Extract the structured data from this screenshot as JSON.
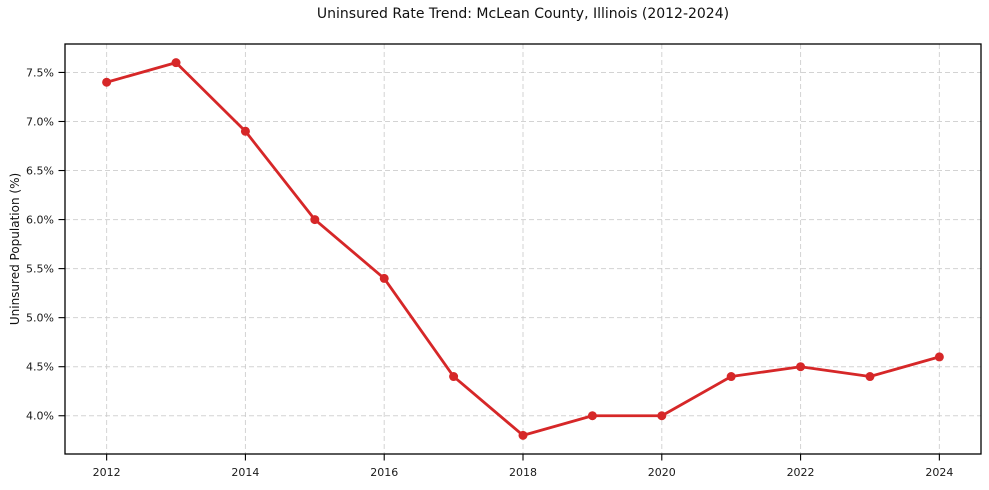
{
  "chart_data": {
    "type": "line",
    "title": "Uninsured Rate Trend: McLean County, Illinois (2012-2024)",
    "xlabel": "",
    "ylabel": "Uninsured Population (%)",
    "x": [
      2012,
      2013,
      2014,
      2015,
      2016,
      2017,
      2018,
      2019,
      2020,
      2021,
      2022,
      2023,
      2024
    ],
    "values": [
      7.4,
      7.6,
      6.9,
      6.0,
      5.4,
      4.4,
      3.8,
      4.0,
      4.0,
      4.4,
      4.5,
      4.4,
      4.6
    ],
    "xlim": [
      2011.4,
      2024.6
    ],
    "ylim": [
      3.61,
      7.79
    ],
    "xticks": [
      2012,
      2014,
      2016,
      2018,
      2020,
      2022,
      2024
    ],
    "xtick_labels": [
      "2012",
      "2014",
      "2016",
      "2018",
      "2020",
      "2022",
      "2024"
    ],
    "yticks": [
      4.0,
      4.5,
      5.0,
      5.5,
      6.0,
      6.5,
      7.0,
      7.5
    ],
    "ytick_labels": [
      "4.0%",
      "4.5%",
      "5.0%",
      "5.5%",
      "6.0%",
      "6.5%",
      "7.0%",
      "7.5%"
    ],
    "line_color": "#d62728",
    "grid_color": "#cccccc",
    "grid": true,
    "legend_position": "none",
    "marker": "circle"
  }
}
